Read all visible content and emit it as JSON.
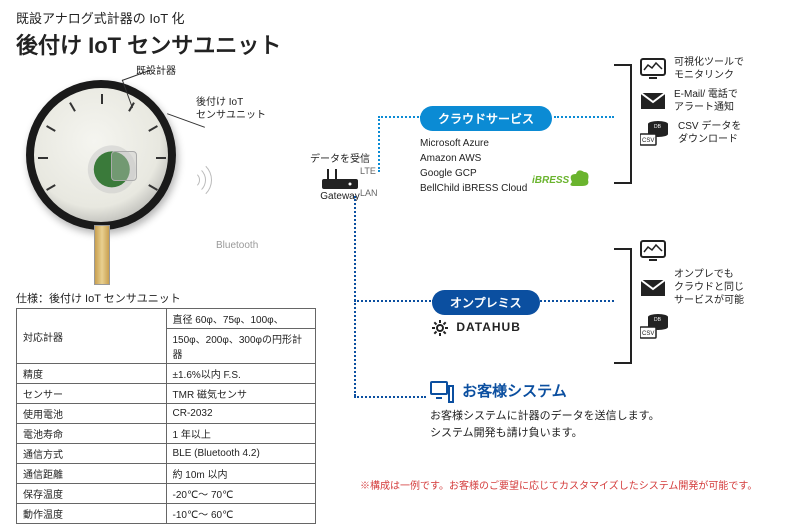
{
  "subtitle": "既設アナログ式計器の IoT 化",
  "title": "後付け IoT センサユニット",
  "callout1": "既設計器",
  "callout2_l1": "後付け IoT",
  "callout2_l2": "センサユニット",
  "bluetooth_label": "Bluetooth",
  "gateway": {
    "top": "データを受信",
    "bottom": "Gateway",
    "conn1": "LTE",
    "conn2": "LAN"
  },
  "cloud": {
    "pill": "クラウドサービス",
    "pill_color": "#0b8bd4",
    "providers": [
      "Microsoft Azure",
      "Amazon AWS",
      "Google GCP",
      "BellChild iBRESS Cloud"
    ],
    "ibress_color": "#6ab42e"
  },
  "onprem": {
    "pill": "オンプレミス",
    "pill_color": "#0b4fa0",
    "product": "DATAHUB"
  },
  "services_cloud": [
    {
      "icon": "monitor",
      "l1": "可視化ツールで",
      "l2": "モニタリンク"
    },
    {
      "icon": "mail",
      "l1": "E-Mail/ 電話で",
      "l2": "アラート通知"
    },
    {
      "icon": "db",
      "l1": "CSV データを",
      "l2": "ダウンロード"
    }
  ],
  "services_onprem": {
    "l1": "オンプレでも",
    "l2": "クラウドと同じ",
    "l3": "サービスが可能"
  },
  "customer": {
    "color": "#0b4fa0",
    "title": "お客様システム",
    "body_l1": "お客様システムに計器のデータを送信します。",
    "body_l2": "システム開発も請け負います。"
  },
  "note": {
    "text": "※構成は一例です。お客様のご要望に応じてカスタマイズしたシステム開発が可能です。",
    "color": "#d43c3c"
  },
  "spec_title": "仕様：後付け IoT センサユニット",
  "spec_rows": [
    [
      "対応計器",
      "直径 60φ、75φ、100φ、"
    ],
    [
      "",
      "150φ、200φ、300φの円形計器"
    ],
    [
      "精度",
      "±1.6%以内 F.S."
    ],
    [
      "センサー",
      "TMR 磁気センサ"
    ],
    [
      "使用電池",
      "CR-2032"
    ],
    [
      "電池寿命",
      "1 年以上"
    ],
    [
      "通信方式",
      "BLE (Bluetooth 4.2)"
    ],
    [
      "通信距離",
      "約 10m 以内"
    ],
    [
      "保存温度",
      "-20℃～ 70℃"
    ],
    [
      "動作温度",
      "-10℃～ 60℃"
    ]
  ],
  "colors": {
    "dotted_cloud": "#0b8bd4",
    "dotted_onprem": "#0b4fa0",
    "dotted_customer": "#0b4fa0"
  }
}
